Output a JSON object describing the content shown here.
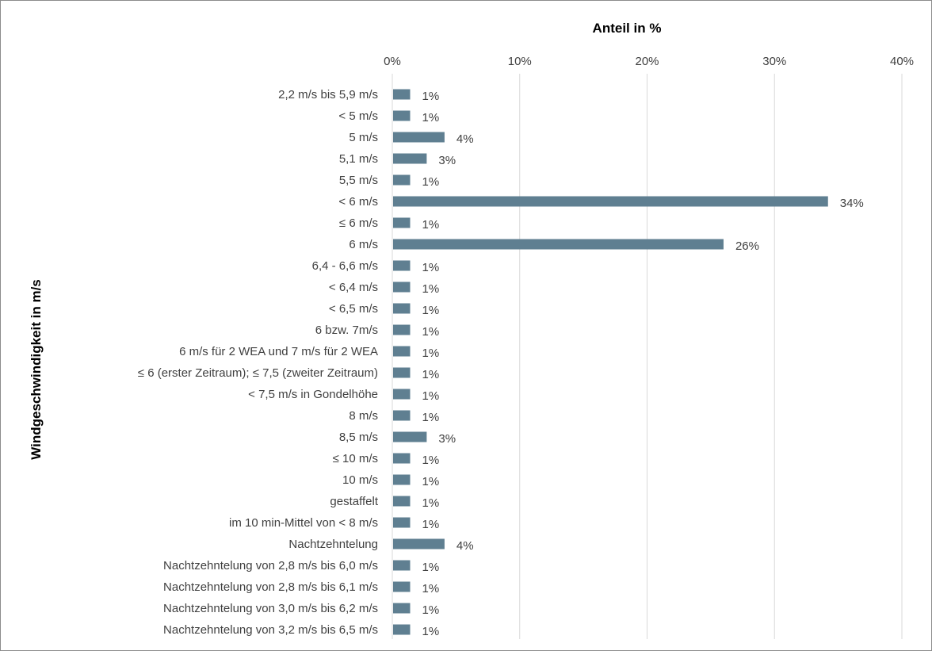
{
  "chart_data": {
    "type": "bar",
    "orientation": "horizontal",
    "title": "",
    "xlabel": "Anteil in %",
    "ylabel": "Windgeschwindigkeit in m/s",
    "xlim": [
      0,
      40
    ],
    "xticks": [
      "0%",
      "10%",
      "20%",
      "30%",
      "40%"
    ],
    "x_axis_position": "top",
    "grid": true,
    "legend": "none",
    "bar_color": "#5f7f91",
    "categories": [
      "2,2 m/s bis 5,9 m/s",
      "< 5 m/s",
      "5 m/s",
      "5,1 m/s",
      "5,5 m/s",
      "< 6 m/s",
      "≤ 6 m/s",
      "6 m/s",
      "6,4 - 6,6 m/s",
      "< 6,4 m/s",
      "< 6,5 m/s",
      "6 bzw. 7m/s",
      "6 m/s für 2 WEA und 7 m/s für 2 WEA",
      "≤ 6 (erster Zeitraum); ≤ 7,5 (zweiter Zeitraum)",
      "< 7,5 m/s in Gondelhöhe",
      "8 m/s",
      "8,5 m/s",
      "≤ 10 m/s",
      "10 m/s",
      "gestaffelt",
      "im 10 min-Mittel von < 8 m/s",
      "Nachtzehntelung",
      "Nachtzehntelung von 2,8 m/s bis 6,0 m/s",
      "Nachtzehntelung von 2,8 m/s bis 6,1 m/s",
      "Nachtzehntelung von 3,0 m/s bis 6,2 m/s",
      "Nachtzehntelung von 3,2 m/s bis 6,5 m/s"
    ],
    "values": [
      1.4,
      1.4,
      4.1,
      2.7,
      1.4,
      34.2,
      1.4,
      26.0,
      1.4,
      1.4,
      1.4,
      1.4,
      1.4,
      1.4,
      1.4,
      1.4,
      2.7,
      1.4,
      1.4,
      1.4,
      1.4,
      4.1,
      1.4,
      1.4,
      1.4,
      1.4
    ],
    "data_labels": [
      "1%",
      "1%",
      "4%",
      "3%",
      "1%",
      "34%",
      "1%",
      "26%",
      "1%",
      "1%",
      "1%",
      "1%",
      "1%",
      "1%",
      "1%",
      "1%",
      "3%",
      "1%",
      "1%",
      "1%",
      "1%",
      "4%",
      "1%",
      "1%",
      "1%",
      "1%"
    ]
  }
}
